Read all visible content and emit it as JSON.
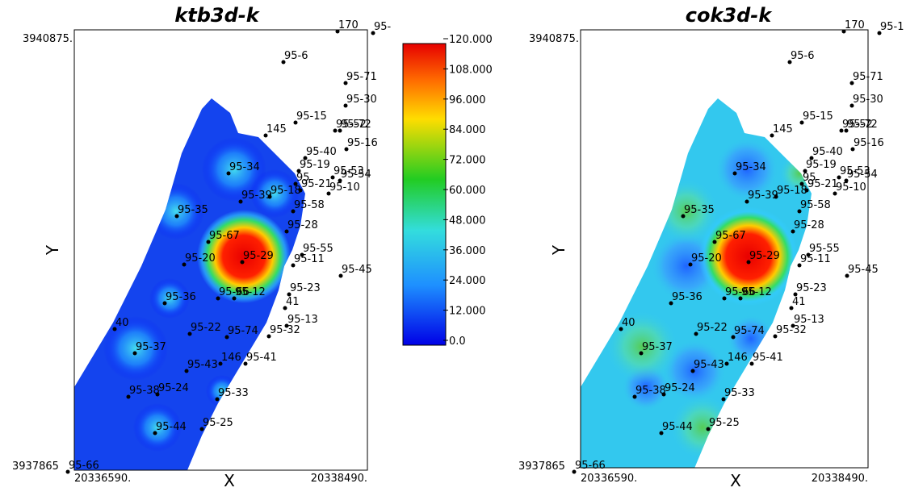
{
  "panels": [
    {
      "title": "ktb3d-k",
      "x_label": "X",
      "y_label": "Y",
      "x_min": "20336590.",
      "x_max": "20338490.",
      "y_max": "3940875.",
      "y_min": "3937865",
      "wells": [
        "170",
        "95-",
        "95-6",
        "95-71",
        "95-30",
        "95-15",
        "145",
        "95-52",
        "95-72",
        "95-16",
        "95-40",
        "95-19",
        "95-53",
        "95-54",
        "95",
        "95-21",
        "95-10",
        "95-34",
        "95-18",
        "95-39",
        "95-35",
        "95-58",
        "95-28",
        "95-67",
        "95-55",
        "95-20",
        "95-29",
        "95-11",
        "95-45",
        "95-36",
        "95-66",
        "95-12",
        "95-23",
        "41",
        "95-13",
        "40",
        "95-22",
        "95-74",
        "95-32",
        "95-37",
        "146",
        "95-41",
        "95-43",
        "95-38",
        "95-24",
        "95-33",
        "95-44",
        "95-25",
        "95-66"
      ]
    },
    {
      "title": "cok3d-k",
      "x_label": "X",
      "y_label": "Y",
      "x_min": "20336590.",
      "x_max": "20338490.",
      "y_max": "3940875.",
      "y_min": "3937865",
      "wells": [
        "170",
        "95-1",
        "95-6",
        "95-71",
        "95-30",
        "95-15",
        "145",
        "95-52",
        "95-72",
        "95-16",
        "95-40",
        "95-19",
        "95-53",
        "95-54",
        "95",
        "95-21",
        "95-10",
        "95-34",
        "95-18",
        "95-39",
        "95-35",
        "95-58",
        "95-28",
        "95-67",
        "95-55",
        "95-20",
        "95-29",
        "95-11",
        "95-45",
        "95-36",
        "95-66",
        "95-12",
        "95-23",
        "41",
        "95-13",
        "40",
        "95-22",
        "95-74",
        "95-32",
        "95-37",
        "146",
        "95-41",
        "95-43",
        "95-38",
        "95-24",
        "95-33",
        "95-44",
        "95-25",
        "95-66"
      ]
    }
  ],
  "colorbar": {
    "ticks": [
      "120.000",
      "108.000",
      "96.000",
      "84.000",
      "72.000",
      "60.000",
      "48.000",
      "36.000",
      "24.000",
      "12.000",
      "0.0"
    ]
  }
}
